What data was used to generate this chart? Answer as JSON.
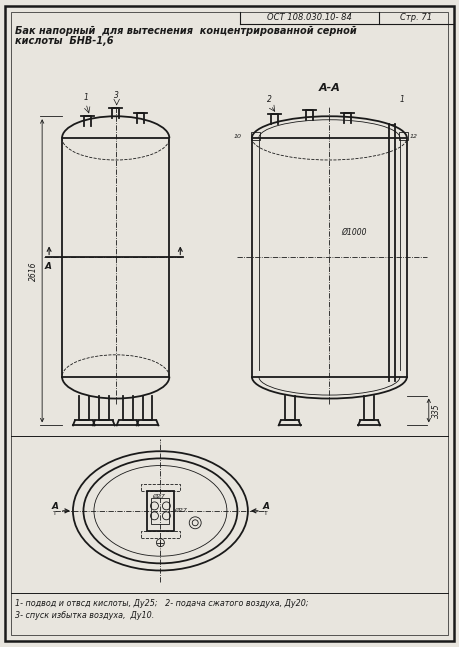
{
  "bg_color": "#e8e5de",
  "line_color": "#1a1a1a",
  "title_line1": "Бак напорный  для вытеснения  концентрированной серной",
  "title_line2": "кислоты  БНВ-1,6",
  "header_text": "ОСТ 108.030.10- 84",
  "page_text": "Стр. 71",
  "section_label": "А-А",
  "dim_height": "2616",
  "dim_diam": "Ø1000",
  "dim_leg": "335",
  "legend_line1": "1- подвод и отвсд кислоты, Ду25;   2- подача сжатого воздуха, Ду20;",
  "legend_line2": "3- спуск избытка воздуха,  Ду10.",
  "font_size_title": 7.0,
  "font_size_header": 6.0,
  "font_size_dim": 5.5,
  "font_size_legend": 5.8,
  "font_size_label": 6.5
}
